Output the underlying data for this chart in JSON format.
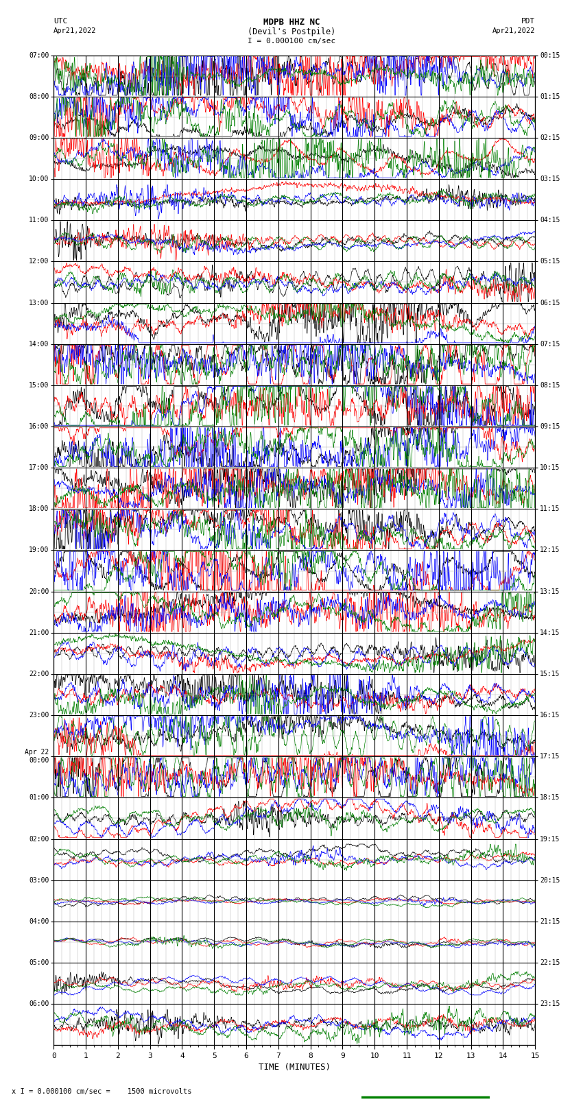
{
  "title_line1": "MDPB HHZ NC",
  "title_line2": "(Devil's Postpile)",
  "scale_label": "I = 0.000100 cm/sec",
  "left_header": "UTC",
  "left_date": "Apr21,2022",
  "right_header": "PDT",
  "right_date": "Apr21,2022",
  "bottom_label": "TIME (MINUTES)",
  "footer_label": "x I = 0.000100 cm/sec =    1500 microvolts",
  "utc_labels": [
    "07:00",
    "08:00",
    "09:00",
    "10:00",
    "11:00",
    "12:00",
    "13:00",
    "14:00",
    "15:00",
    "16:00",
    "17:00",
    "18:00",
    "19:00",
    "20:00",
    "21:00",
    "22:00",
    "23:00",
    "Apr 22\n00:00",
    "01:00",
    "02:00",
    "03:00",
    "04:00",
    "05:00",
    "06:00"
  ],
  "pdt_labels": [
    "00:15",
    "01:15",
    "02:15",
    "03:15",
    "04:15",
    "05:15",
    "06:15",
    "07:15",
    "08:15",
    "09:15",
    "10:15",
    "11:15",
    "12:15",
    "13:15",
    "14:15",
    "15:15",
    "16:15",
    "17:15",
    "18:15",
    "19:15",
    "20:15",
    "21:15",
    "22:15",
    "23:15"
  ],
  "xmin": 0,
  "xmax": 15,
  "xticks": [
    0,
    1,
    2,
    3,
    4,
    5,
    6,
    7,
    8,
    9,
    10,
    11,
    12,
    13,
    14,
    15
  ],
  "num_rows": 24,
  "colors": [
    "black",
    "red",
    "blue",
    "green"
  ],
  "bg_color": "white",
  "major_grid_color": "#000000",
  "minor_grid_color": "#aaaaaa",
  "figure_width": 8.5,
  "figure_height": 16.13,
  "dpi": 100,
  "row_amplitude": 0.48,
  "trace_linewidth": 0.5
}
